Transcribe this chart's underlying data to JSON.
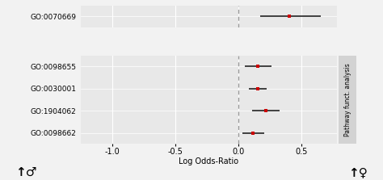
{
  "panel1": {
    "labels": [
      "GO:0070669"
    ],
    "centers": [
      0.4
    ],
    "ci_low": [
      0.17
    ],
    "ci_high": [
      0.65
    ]
  },
  "panel2": {
    "labels": [
      "GO:0098655",
      "GO:0030001",
      "GO:1904062",
      "GO:0098662"
    ],
    "centers": [
      0.155,
      0.155,
      0.215,
      0.115
    ],
    "ci_low": [
      0.05,
      0.085,
      0.105,
      0.03
    ],
    "ci_high": [
      0.26,
      0.225,
      0.325,
      0.205
    ],
    "facet_label": "Pathway funct. analysis"
  },
  "xlim": [
    -1.25,
    0.78
  ],
  "xticks": [
    -1.0,
    -0.5,
    0.0,
    0.5
  ],
  "xticklabels": [
    "-1.0",
    "-0.5",
    "0.0",
    "0.5"
  ],
  "xlabel": "Log Odds-Ratio",
  "vline_x": 0.0,
  "point_color": "#cc0000",
  "line_color": "#222222",
  "bg_color": "#e8e8e8",
  "fig_bg": "#f2f2f2",
  "grid_color": "#ffffff",
  "facet_strip_bg": "#d3d3d3",
  "male_symbol": "↑♂",
  "female_symbol": "↑♀",
  "tick_fontsize": 7,
  "label_fontsize": 7,
  "ytick_fontsize": 6.5,
  "symbol_fontsize": 11
}
